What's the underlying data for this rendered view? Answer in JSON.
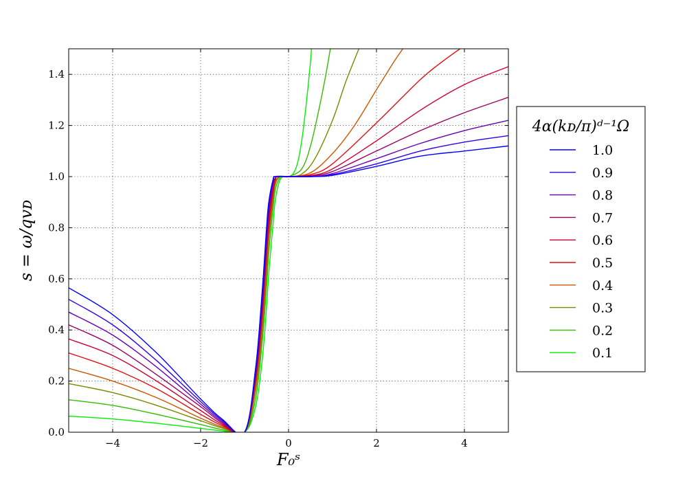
{
  "chart_data": {
    "type": "line",
    "xlabel": "F₀ˢ",
    "ylabel": "s = ω/qvᴅ",
    "xlim": [
      -5,
      5
    ],
    "ylim": [
      0,
      1.5
    ],
    "xticks": [
      -4,
      -2,
      0,
      2,
      4
    ],
    "xtick_labels": [
      "−4",
      "−2",
      "0",
      "2",
      "4"
    ],
    "yticks": [
      0.0,
      0.2,
      0.4,
      0.6,
      0.8,
      1.0,
      1.2,
      1.4
    ],
    "ytick_labels": [
      "0.0",
      "0.2",
      "0.4",
      "0.6",
      "0.8",
      "1.0",
      "1.2",
      "1.4"
    ],
    "grid": true,
    "legend_position": "right",
    "legend_title": "4α(kᴅ/π)ᵈ⁻¹Ω",
    "series": [
      {
        "name": "1.0",
        "color": "#0000ff",
        "points": [
          [
            -5,
            0.565
          ],
          [
            -4,
            0.46
          ],
          [
            -3,
            0.31
          ],
          [
            -2,
            0.13
          ],
          [
            -1.5,
            0.05
          ],
          [
            -1,
            0.0
          ],
          [
            -0.75,
            0.25
          ],
          [
            -0.6,
            0.55
          ],
          [
            -0.5,
            0.8
          ],
          [
            -0.45,
            0.9
          ],
          [
            -0.35,
            0.99
          ],
          [
            -0.3,
            1.0
          ],
          [
            0,
            1.0
          ],
          [
            0.5,
            1.0
          ],
          [
            1,
            1.005
          ],
          [
            2,
            1.04
          ],
          [
            3,
            1.08
          ],
          [
            4,
            1.1
          ],
          [
            5,
            1.12
          ]
        ]
      },
      {
        "name": "0.9",
        "color": "#3300e6",
        "points": [
          [
            -5,
            0.52
          ],
          [
            -4,
            0.42
          ],
          [
            -3,
            0.28
          ],
          [
            -2,
            0.12
          ],
          [
            -1.5,
            0.045
          ],
          [
            -1,
            0.0
          ],
          [
            -0.75,
            0.24
          ],
          [
            -0.6,
            0.53
          ],
          [
            -0.5,
            0.78
          ],
          [
            -0.45,
            0.89
          ],
          [
            -0.35,
            0.985
          ],
          [
            -0.3,
            1.0
          ],
          [
            0,
            1.0
          ],
          [
            0.5,
            1.0
          ],
          [
            1,
            1.008
          ],
          [
            2,
            1.05
          ],
          [
            3,
            1.1
          ],
          [
            4,
            1.135
          ],
          [
            5,
            1.16
          ]
        ]
      },
      {
        "name": "0.8",
        "color": "#6600b3",
        "points": [
          [
            -5,
            0.47
          ],
          [
            -4,
            0.38
          ],
          [
            -3,
            0.255
          ],
          [
            -2,
            0.11
          ],
          [
            -1.5,
            0.04
          ],
          [
            -1,
            0.0
          ],
          [
            -0.75,
            0.23
          ],
          [
            -0.6,
            0.51
          ],
          [
            -0.5,
            0.76
          ],
          [
            -0.45,
            0.87
          ],
          [
            -0.35,
            0.98
          ],
          [
            -0.3,
            1.0
          ],
          [
            0,
            1.0
          ],
          [
            0.5,
            1.0
          ],
          [
            1,
            1.012
          ],
          [
            2,
            1.07
          ],
          [
            3,
            1.13
          ],
          [
            4,
            1.18
          ],
          [
            5,
            1.22
          ]
        ]
      },
      {
        "name": "0.7",
        "color": "#990066",
        "points": [
          [
            -5,
            0.42
          ],
          [
            -4,
            0.34
          ],
          [
            -3,
            0.225
          ],
          [
            -2,
            0.1
          ],
          [
            -1.5,
            0.035
          ],
          [
            -1,
            0.0
          ],
          [
            -0.75,
            0.22
          ],
          [
            -0.6,
            0.49
          ],
          [
            -0.5,
            0.74
          ],
          [
            -0.45,
            0.85
          ],
          [
            -0.35,
            0.97
          ],
          [
            -0.3,
            0.995
          ],
          [
            -0.25,
            1.0
          ],
          [
            0,
            1.0
          ],
          [
            0.5,
            1.002
          ],
          [
            1,
            1.02
          ],
          [
            2,
            1.1
          ],
          [
            3,
            1.18
          ],
          [
            4,
            1.25
          ],
          [
            5,
            1.31
          ]
        ]
      },
      {
        "name": "0.6",
        "color": "#cc0033",
        "points": [
          [
            -5,
            0.365
          ],
          [
            -4,
            0.3
          ],
          [
            -3,
            0.2
          ],
          [
            -2,
            0.085
          ],
          [
            -1.5,
            0.03
          ],
          [
            -1,
            0.0
          ],
          [
            -0.75,
            0.21
          ],
          [
            -0.6,
            0.47
          ],
          [
            -0.5,
            0.72
          ],
          [
            -0.45,
            0.83
          ],
          [
            -0.35,
            0.96
          ],
          [
            -0.3,
            0.99
          ],
          [
            -0.25,
            1.0
          ],
          [
            0,
            1.0
          ],
          [
            0.5,
            1.004
          ],
          [
            1,
            1.03
          ],
          [
            2,
            1.14
          ],
          [
            3,
            1.26
          ],
          [
            4,
            1.36
          ],
          [
            5,
            1.43
          ]
        ]
      },
      {
        "name": "0.5",
        "color": "#dd1111",
        "points": [
          [
            -5,
            0.31
          ],
          [
            -4,
            0.25
          ],
          [
            -3,
            0.17
          ],
          [
            -2,
            0.07
          ],
          [
            -1.5,
            0.025
          ],
          [
            -1,
            0.0
          ],
          [
            -0.75,
            0.2
          ],
          [
            -0.6,
            0.45
          ],
          [
            -0.5,
            0.69
          ],
          [
            -0.45,
            0.8
          ],
          [
            -0.35,
            0.94
          ],
          [
            -0.3,
            0.985
          ],
          [
            -0.25,
            1.0
          ],
          [
            0,
            1.0
          ],
          [
            0.5,
            1.008
          ],
          [
            1,
            1.05
          ],
          [
            2,
            1.21
          ],
          [
            3,
            1.38
          ],
          [
            3.5,
            1.45
          ],
          [
            3.9,
            1.5
          ]
        ]
      },
      {
        "name": "0.4",
        "color": "#cc5500",
        "points": [
          [
            -5,
            0.25
          ],
          [
            -4,
            0.2
          ],
          [
            -3,
            0.135
          ],
          [
            -2,
            0.055
          ],
          [
            -1.5,
            0.02
          ],
          [
            -1,
            0.0
          ],
          [
            -0.75,
            0.18
          ],
          [
            -0.6,
            0.42
          ],
          [
            -0.5,
            0.66
          ],
          [
            -0.45,
            0.78
          ],
          [
            -0.35,
            0.93
          ],
          [
            -0.3,
            0.98
          ],
          [
            -0.2,
            1.0
          ],
          [
            0,
            1.0
          ],
          [
            0.5,
            1.015
          ],
          [
            1,
            1.09
          ],
          [
            1.5,
            1.2
          ],
          [
            2,
            1.34
          ],
          [
            2.4,
            1.45
          ],
          [
            2.6,
            1.5
          ]
        ]
      },
      {
        "name": "0.3",
        "color": "#778800",
        "points": [
          [
            -5,
            0.19
          ],
          [
            -4,
            0.155
          ],
          [
            -3,
            0.105
          ],
          [
            -2,
            0.045
          ],
          [
            -1.5,
            0.016
          ],
          [
            -1,
            0.0
          ],
          [
            -0.75,
            0.16
          ],
          [
            -0.6,
            0.39
          ],
          [
            -0.5,
            0.62
          ],
          [
            -0.45,
            0.75
          ],
          [
            -0.35,
            0.91
          ],
          [
            -0.3,
            0.97
          ],
          [
            -0.2,
            1.0
          ],
          [
            0,
            1.0
          ],
          [
            0.3,
            1.01
          ],
          [
            0.6,
            1.07
          ],
          [
            1,
            1.22
          ],
          [
            1.3,
            1.37
          ],
          [
            1.6,
            1.5
          ]
        ]
      },
      {
        "name": "0.2",
        "color": "#33bb00",
        "points": [
          [
            -5,
            0.127
          ],
          [
            -4,
            0.105
          ],
          [
            -3,
            0.07
          ],
          [
            -2,
            0.03
          ],
          [
            -1.5,
            0.01
          ],
          [
            -1,
            0.0
          ],
          [
            -0.75,
            0.13
          ],
          [
            -0.6,
            0.35
          ],
          [
            -0.5,
            0.57
          ],
          [
            -0.45,
            0.7
          ],
          [
            -0.35,
            0.88
          ],
          [
            -0.3,
            0.95
          ],
          [
            -0.2,
            0.995
          ],
          [
            -0.1,
            1.0
          ],
          [
            0,
            1.0
          ],
          [
            0.3,
            1.03
          ],
          [
            0.5,
            1.12
          ],
          [
            0.7,
            1.27
          ],
          [
            0.85,
            1.4
          ],
          [
            0.95,
            1.5
          ]
        ]
      },
      {
        "name": "0.1",
        "color": "#00ee00",
        "points": [
          [
            -5,
            0.063
          ],
          [
            -4,
            0.052
          ],
          [
            -3,
            0.035
          ],
          [
            -2,
            0.015
          ],
          [
            -1.5,
            0.005
          ],
          [
            -1,
            0.0
          ],
          [
            -0.75,
            0.1
          ],
          [
            -0.6,
            0.28
          ],
          [
            -0.5,
            0.49
          ],
          [
            -0.45,
            0.62
          ],
          [
            -0.35,
            0.82
          ],
          [
            -0.3,
            0.91
          ],
          [
            -0.2,
            0.985
          ],
          [
            -0.1,
            1.0
          ],
          [
            0,
            1.0
          ],
          [
            0.1,
            1.01
          ],
          [
            0.2,
            1.05
          ],
          [
            0.3,
            1.14
          ],
          [
            0.4,
            1.28
          ],
          [
            0.5,
            1.45
          ],
          [
            0.52,
            1.5
          ]
        ]
      }
    ]
  }
}
